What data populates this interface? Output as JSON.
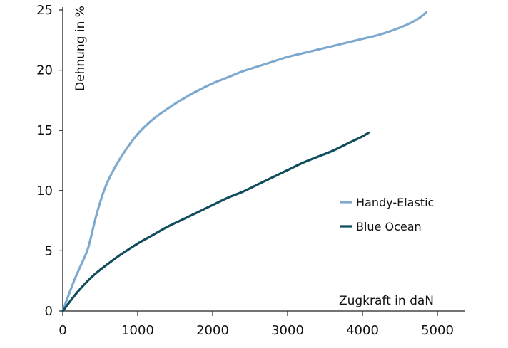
{
  "chart_data": {
    "type": "line",
    "title": "",
    "xlabel": "Zugkraft in daN",
    "ylabel": "Dehnung in %",
    "xlim": [
      0,
      5300
    ],
    "ylim": [
      0,
      25
    ],
    "xticks": [
      0,
      1000,
      2000,
      3000,
      4000,
      5000
    ],
    "yticks": [
      0,
      5,
      10,
      15,
      20,
      25
    ],
    "xtick_labels": [
      "0",
      "1000",
      "2000",
      "3000",
      "4000",
      "5000"
    ],
    "ytick_labels": [
      "0",
      "5",
      "10",
      "15",
      "20",
      "25"
    ],
    "grid": false,
    "legend_position": "right",
    "series": [
      {
        "name": "Handy-Elastic",
        "color": "#7ea9cf",
        "x": [
          0,
          150,
          300,
          350,
          450,
          550,
          650,
          800,
          1000,
          1200,
          1400,
          1600,
          1800,
          2000,
          2200,
          2400,
          2600,
          2800,
          3000,
          3200,
          3400,
          3600,
          3800,
          4000,
          4200,
          4400,
          4600,
          4750,
          4850
        ],
        "y": [
          0,
          2.5,
          4.6,
          5.5,
          8.0,
          10.0,
          11.4,
          13.0,
          14.7,
          15.9,
          16.8,
          17.6,
          18.3,
          18.9,
          19.4,
          19.9,
          20.3,
          20.7,
          21.1,
          21.4,
          21.7,
          22.0,
          22.3,
          22.6,
          22.9,
          23.3,
          23.8,
          24.3,
          24.8
        ]
      },
      {
        "name": "Blue Ocean",
        "color": "#0f4c5c",
        "x": [
          0,
          200,
          400,
          600,
          800,
          1000,
          1200,
          1400,
          1600,
          1800,
          2000,
          2200,
          2400,
          2600,
          2800,
          3000,
          3200,
          3400,
          3600,
          3800,
          4000,
          4080
        ],
        "y": [
          0,
          1.6,
          2.9,
          3.9,
          4.8,
          5.6,
          6.3,
          7.0,
          7.6,
          8.2,
          8.8,
          9.4,
          9.9,
          10.5,
          11.1,
          11.7,
          12.3,
          12.8,
          13.3,
          13.9,
          14.5,
          14.8
        ]
      }
    ]
  }
}
